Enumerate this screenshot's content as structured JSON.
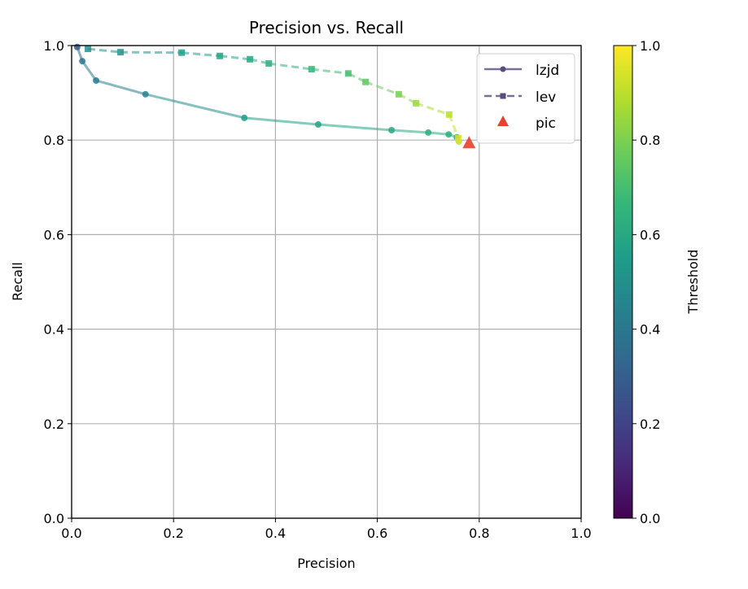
{
  "chart_data": {
    "type": "line",
    "title": "Precision vs. Recall",
    "xlabel": "Precision",
    "ylabel": "Recall",
    "xlim": [
      0,
      1
    ],
    "ylim": [
      0,
      1
    ],
    "xticks": [
      "0.0",
      "0.2",
      "0.4",
      "0.6",
      "0.8",
      "1.0"
    ],
    "yticks": [
      "0.0",
      "0.2",
      "0.4",
      "0.6",
      "0.8",
      "1.0"
    ],
    "grid": true,
    "legend_position": "top-right",
    "colormap": "viridis",
    "colorbar": {
      "label": "Threshold",
      "range": [
        0,
        1
      ],
      "ticks": [
        "0.0",
        "0.2",
        "0.4",
        "0.6",
        "0.8",
        "1.0"
      ]
    },
    "series": [
      {
        "name": "lzjd",
        "marker": "circle",
        "linestyle": "solid",
        "x": [
          0.011,
          0.021,
          0.048,
          0.145,
          0.339,
          0.484,
          0.628,
          0.7,
          0.74,
          0.756,
          0.76
        ],
        "y": [
          0.997,
          0.967,
          0.926,
          0.897,
          0.847,
          0.833,
          0.821,
          0.816,
          0.812,
          0.806,
          0.797
        ],
        "threshold": [
          0.3,
          0.4,
          0.42,
          0.45,
          0.55,
          0.58,
          0.6,
          0.62,
          0.63,
          0.65,
          0.9
        ]
      },
      {
        "name": "lev",
        "marker": "square",
        "linestyle": "dashed",
        "x": [
          0.032,
          0.096,
          0.216,
          0.291,
          0.35,
          0.387,
          0.471,
          0.543,
          0.577,
          0.642,
          0.676,
          0.741,
          0.759
        ],
        "y": [
          0.993,
          0.986,
          0.985,
          0.978,
          0.971,
          0.962,
          0.95,
          0.941,
          0.923,
          0.897,
          0.878,
          0.854,
          0.804
        ],
        "threshold": [
          0.5,
          0.52,
          0.55,
          0.58,
          0.6,
          0.63,
          0.66,
          0.7,
          0.75,
          0.8,
          0.85,
          0.9,
          0.95
        ]
      },
      {
        "name": "pic",
        "marker": "triangle",
        "color": "#e8412f",
        "x": [
          0.78
        ],
        "y": [
          0.793
        ]
      }
    ],
    "legend_color": "#5b4a7e"
  }
}
